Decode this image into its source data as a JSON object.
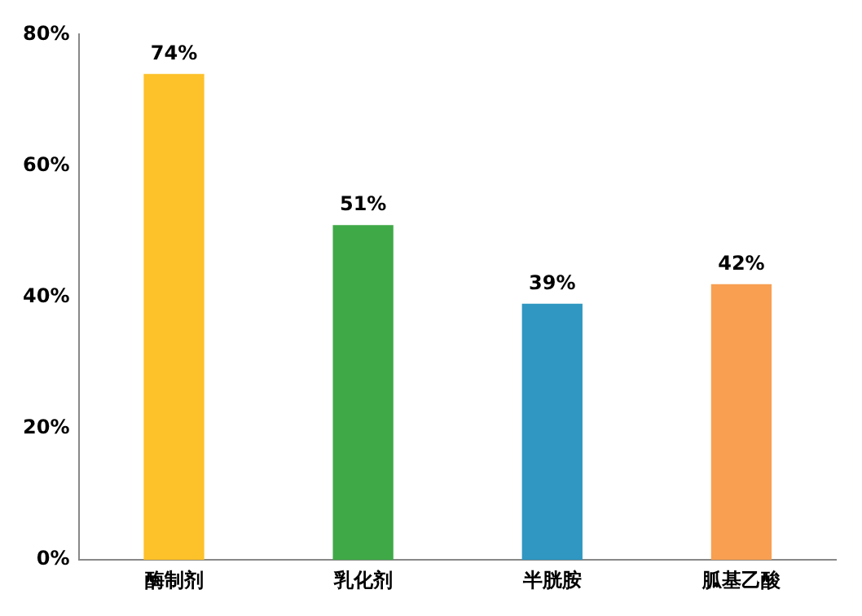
{
  "chart_data": {
    "type": "bar",
    "categories": [
      "酶制剂",
      "乳化剂",
      "半胱胺",
      "胍基乙酸"
    ],
    "values": [
      74,
      51,
      39,
      42
    ],
    "colors": [
      "#fdc12a",
      "#3fa947",
      "#2f97c1",
      "#f89f52"
    ],
    "value_labels": [
      "74%",
      "51%",
      "39%",
      "42%"
    ],
    "ylim": [
      0,
      80
    ],
    "yticks": [
      {
        "value": 0,
        "label": "0%"
      },
      {
        "value": 20,
        "label": "20%"
      },
      {
        "value": 40,
        "label": "40%"
      },
      {
        "value": 60,
        "label": "60%"
      },
      {
        "value": 80,
        "label": "80%"
      }
    ],
    "grid": false,
    "legend": false
  }
}
